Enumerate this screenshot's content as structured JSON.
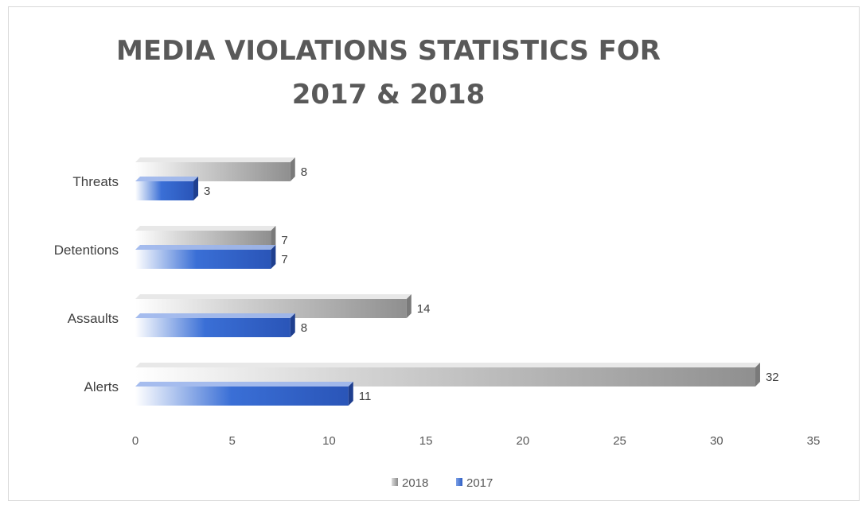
{
  "chart_data": {
    "type": "bar",
    "orientation": "horizontal",
    "title_lines": [
      "MEDIA VIOLATIONS STATISTICS FOR",
      "2017 & 2018"
    ],
    "categories": [
      "Alerts",
      "Assaults",
      "Detentions",
      "Threats"
    ],
    "series": [
      {
        "name": "2018",
        "values": [
          32,
          14,
          7,
          8
        ],
        "color": "#8c8c8c"
      },
      {
        "name": "2017",
        "values": [
          11,
          8,
          7,
          3
        ],
        "color": "#2f5fc4"
      }
    ],
    "xlim": [
      0,
      35
    ],
    "xticks": [
      0,
      5,
      10,
      15,
      20,
      25,
      30,
      35
    ],
    "grid": false,
    "legend": "bottom",
    "data_labels": true
  }
}
